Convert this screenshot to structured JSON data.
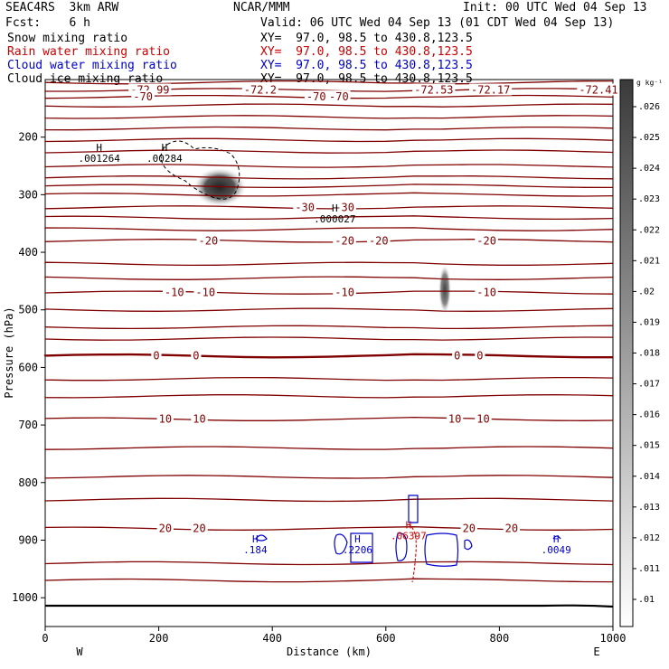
{
  "header": {
    "model": "SEAC4RS  3km ARW",
    "org": "NCAR/MMM",
    "init": "Init: 00 UTC Wed 04 Sep 13",
    "fcst": "Fcst:    6 h",
    "valid": "Valid: 06 UTC Wed 04 Sep 13 (01 CDT Wed 04 Sep 13)",
    "fields": [
      {
        "label": "Snow mixing ratio",
        "xy": "XY=  97.0, 98.5 to 430.8,123.5",
        "color": "#000000"
      },
      {
        "label": "Rain water mixing ratio",
        "xy": "XY=  97.0, 98.5 to 430.8,123.5",
        "color": "#cc0000"
      },
      {
        "label": "Cloud water mixing ratio",
        "xy": "XY=  97.0, 98.5 to 430.8,123.5",
        "color": "#0000cc"
      },
      {
        "label": "Cloud ice mixing ratio",
        "xy": "XY=  97.0, 98.5 to 430.8,123.5",
        "color": "#000000"
      }
    ]
  },
  "chart_data": {
    "type": "contour",
    "xlabel": "Distance (km)",
    "ylabel": "Pressure (hPa)",
    "xlim": [
      0,
      1000
    ],
    "ylim": [
      1050,
      100
    ],
    "x_ticks": [
      0,
      200,
      400,
      600,
      800,
      1000
    ],
    "y_ticks": [
      200,
      300,
      400,
      500,
      600,
      700,
      800,
      900,
      1000
    ],
    "x_end_labels": {
      "left": "W",
      "right": "E"
    },
    "colorbar": {
      "unit": "g kg⁻¹",
      "ticks": [
        ".01",
        ".011",
        ".012",
        ".013",
        ".014",
        ".015",
        ".016",
        ".017",
        ".018",
        ".019",
        ".02",
        ".021",
        ".022",
        ".023",
        ".024",
        ".025",
        ".026"
      ]
    },
    "temperature_contours": [
      {
        "p": 118,
        "labels": [
          {
            "x": 150,
            "t": "-72.99"
          },
          {
            "x": 350,
            "t": "-72.2"
          },
          {
            "x": 650,
            "t": "-72.53"
          },
          {
            "x": 750,
            "t": "-72.17"
          },
          {
            "x": 940,
            "t": "-72.41"
          }
        ]
      },
      {
        "p": 130,
        "labels": [
          {
            "x": 155,
            "t": "-70"
          },
          {
            "x": 460,
            "t": "-70"
          },
          {
            "x": 500,
            "t": "-70"
          }
        ]
      },
      {
        "p": 322,
        "labels": [
          {
            "x": 440,
            "t": "-30"
          },
          {
            "x": 510,
            "t": "-30"
          }
        ]
      },
      {
        "p": 380,
        "labels": [
          {
            "x": 270,
            "t": "-20"
          },
          {
            "x": 510,
            "t": "-20"
          },
          {
            "x": 570,
            "t": "-20"
          },
          {
            "x": 760,
            "t": "-20"
          }
        ]
      },
      {
        "p": 470,
        "labels": [
          {
            "x": 210,
            "t": "-10"
          },
          {
            "x": 265,
            "t": "-10"
          },
          {
            "x": 510,
            "t": "-10"
          },
          {
            "x": 760,
            "t": "-10"
          }
        ]
      },
      {
        "p": 580,
        "labels": [
          {
            "x": 190,
            "t": "0"
          },
          {
            "x": 260,
            "t": "0"
          },
          {
            "x": 720,
            "t": "0"
          },
          {
            "x": 760,
            "t": "0"
          }
        ]
      },
      {
        "p": 690,
        "labels": [
          {
            "x": 200,
            "t": "10"
          },
          {
            "x": 260,
            "t": "10"
          },
          {
            "x": 710,
            "t": "10"
          },
          {
            "x": 760,
            "t": "10"
          }
        ]
      },
      {
        "p": 880,
        "labels": [
          {
            "x": 200,
            "t": "20"
          },
          {
            "x": 260,
            "t": "20"
          },
          {
            "x": 735,
            "t": "20"
          },
          {
            "x": 810,
            "t": "20"
          }
        ]
      }
    ],
    "maxima_labels": [
      {
        "x": 95,
        "p": 240,
        "t": ".001264",
        "color": "#000000"
      },
      {
        "x": 210,
        "p": 240,
        "t": ".00284",
        "color": "#000000"
      },
      {
        "x": 510,
        "p": 345,
        "t": ".000027",
        "color": "#000000"
      },
      {
        "x": 370,
        "p": 920,
        "t": ".184",
        "color": "#0000cc"
      },
      {
        "x": 550,
        "p": 920,
        "t": ".2206",
        "color": "#0000cc"
      },
      {
        "x": 640,
        "p": 895,
        "t": ".06397",
        "color": "#cc0000"
      },
      {
        "x": 900,
        "p": 920,
        "t": ".0049",
        "color": "#0000cc"
      }
    ],
    "grid": false
  }
}
